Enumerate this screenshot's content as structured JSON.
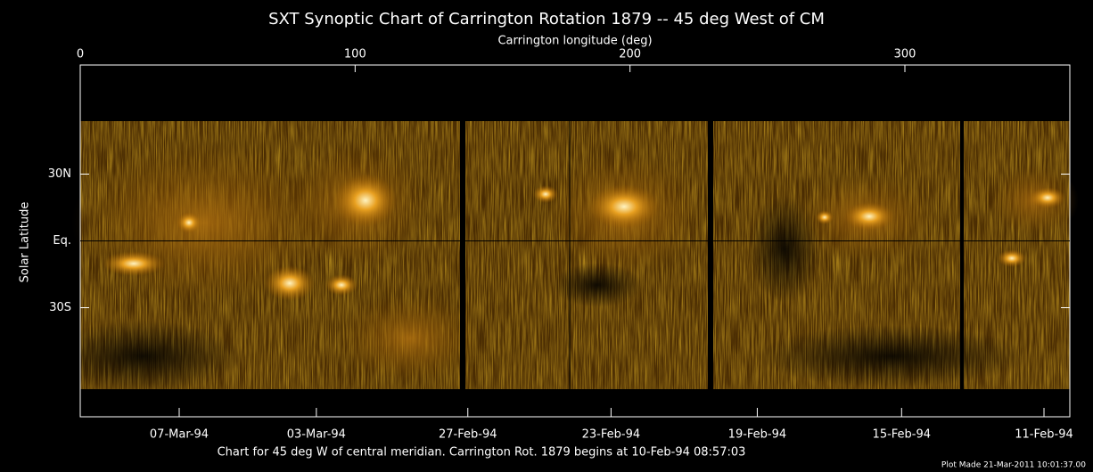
{
  "chart_data": {
    "type": "image",
    "title": "SXT Synoptic Chart of Carrington Rotation 1879 -- 45 deg West of CM",
    "xlabel": "Carrington longitude (deg)",
    "ylabel": "Solar Latitude",
    "xlim": [
      0,
      360
    ],
    "xticks": [
      0,
      100,
      200,
      300
    ],
    "ylim": [
      -79,
      79
    ],
    "yticks": [
      {
        "value": 30,
        "label": "30N"
      },
      {
        "value": 0,
        "label": "Eq."
      },
      {
        "value": -30,
        "label": "30S"
      }
    ],
    "x2ticks": [
      {
        "value": 36.0,
        "label": "07-Mar-94"
      },
      {
        "value": 85.9,
        "label": "03-Mar-94"
      },
      {
        "value": 141.0,
        "label": "27-Feb-94"
      },
      {
        "value": 193.1,
        "label": "23-Feb-94"
      },
      {
        "value": 246.3,
        "label": "19-Feb-94"
      },
      {
        "value": 298.8,
        "label": "15-Feb-94"
      },
      {
        "value": 350.6,
        "label": "11-Feb-94"
      }
    ],
    "caption": "Chart for 45 deg W of central meridian.  Carrington Rot. 1879 begins at 10-Feb-94 08:57:03",
    "credit": "Plot Made 21-Mar-2011 10:01:37.00"
  }
}
